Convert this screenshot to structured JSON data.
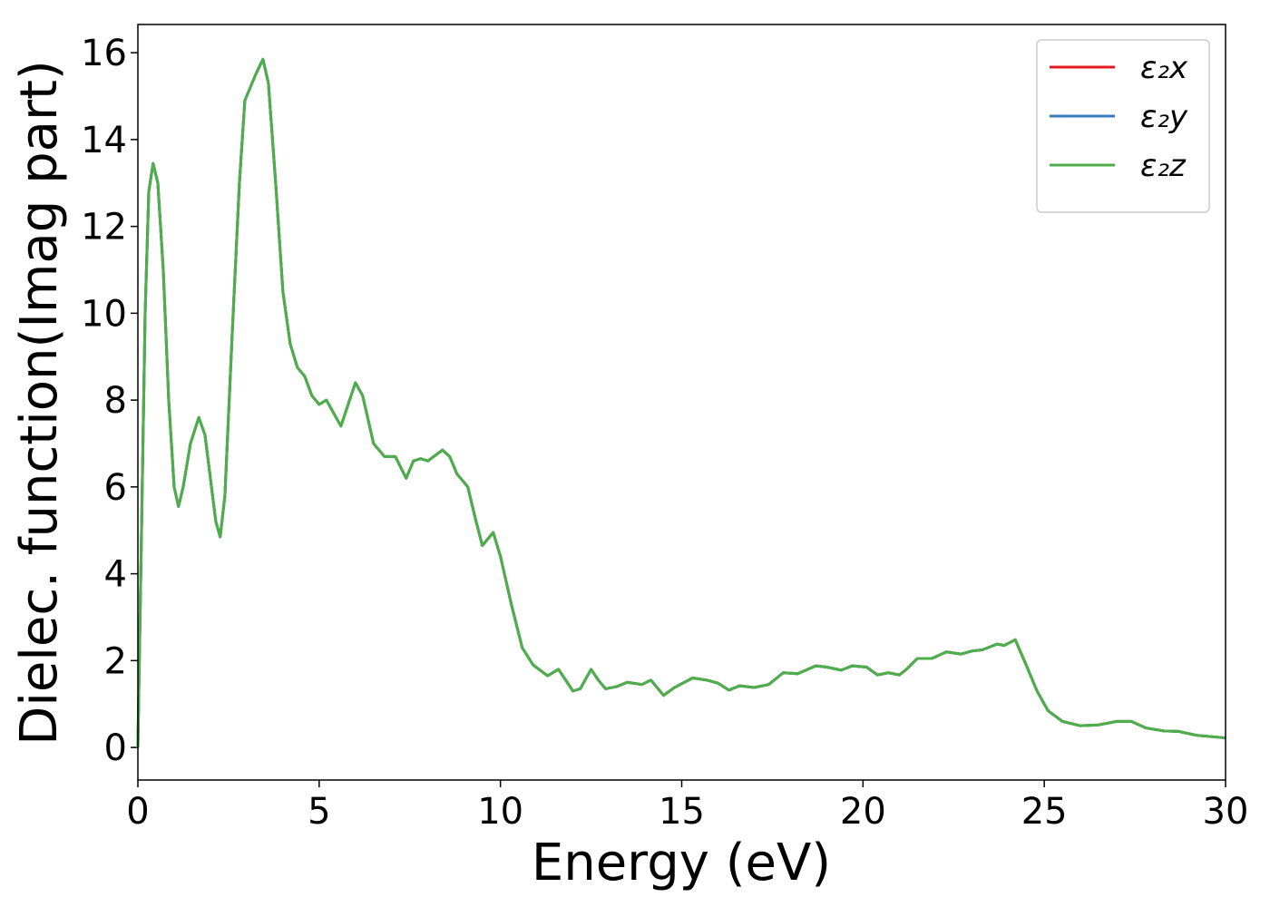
{
  "chart_data": {
    "type": "line",
    "xlabel": "Energy (eV)",
    "ylabel": "Dielec. function(Imag part)",
    "xlim": [
      0,
      30
    ],
    "ylim": [
      -0.75,
      16.65
    ],
    "xticks": [
      0,
      5,
      10,
      15,
      20,
      25,
      30
    ],
    "yticks": [
      0,
      2,
      4,
      6,
      8,
      10,
      12,
      14,
      16
    ],
    "legend": "upper right",
    "x": [
      0,
      0.1,
      0.2,
      0.3,
      0.42,
      0.55,
      0.7,
      0.85,
      1.0,
      1.12,
      1.25,
      1.45,
      1.68,
      1.85,
      2.0,
      2.15,
      2.27,
      2.4,
      2.6,
      2.8,
      2.95,
      3.1,
      3.25,
      3.45,
      3.6,
      3.8,
      4.0,
      4.2,
      4.4,
      4.6,
      4.8,
      5.0,
      5.2,
      5.4,
      5.6,
      5.8,
      6.0,
      6.2,
      6.5,
      6.8,
      7.1,
      7.4,
      7.6,
      7.8,
      8.0,
      8.4,
      8.6,
      8.8,
      9.1,
      9.3,
      9.5,
      9.8,
      10.0,
      10.3,
      10.6,
      10.9,
      11.3,
      11.6,
      11.8,
      12.0,
      12.2,
      12.5,
      12.7,
      12.9,
      13.2,
      13.5,
      13.9,
      14.15,
      14.5,
      14.8,
      15.3,
      15.7,
      16.0,
      16.3,
      16.6,
      17.0,
      17.4,
      17.8,
      18.2,
      18.7,
      19.0,
      19.4,
      19.7,
      20.1,
      20.4,
      20.7,
      21.0,
      21.2,
      21.5,
      21.9,
      22.3,
      22.7,
      23.0,
      23.3,
      23.7,
      23.9,
      24.2,
      24.5,
      24.8,
      25.1,
      25.5,
      26.0,
      26.5,
      27.0,
      27.4,
      27.8,
      28.3,
      28.7,
      29.2,
      30.0
    ],
    "series": [
      {
        "name": "ε₂x",
        "color": "#e41a1c",
        "values": [
          0,
          5,
          10,
          12.8,
          13.45,
          13.0,
          11,
          8,
          6,
          5.55,
          6.0,
          7.0,
          7.6,
          7.2,
          6.2,
          5.2,
          4.85,
          5.8,
          9.5,
          13,
          14.9,
          15.2,
          15.5,
          15.85,
          15.3,
          13,
          10.5,
          9.3,
          8.75,
          8.55,
          8.1,
          7.9,
          8.0,
          7.7,
          7.4,
          7.9,
          8.4,
          8.1,
          7.0,
          6.7,
          6.7,
          6.2,
          6.6,
          6.65,
          6.6,
          6.85,
          6.7,
          6.3,
          6.0,
          5.3,
          4.65,
          4.95,
          4.4,
          3.3,
          2.3,
          1.9,
          1.65,
          1.8,
          1.55,
          1.3,
          1.35,
          1.8,
          1.55,
          1.35,
          1.4,
          1.5,
          1.45,
          1.55,
          1.2,
          1.38,
          1.6,
          1.55,
          1.48,
          1.32,
          1.42,
          1.38,
          1.45,
          1.72,
          1.7,
          1.88,
          1.85,
          1.78,
          1.88,
          1.85,
          1.67,
          1.72,
          1.67,
          1.8,
          2.05,
          2.05,
          2.2,
          2.15,
          2.22,
          2.25,
          2.38,
          2.35,
          2.48,
          1.9,
          1.3,
          0.85,
          0.6,
          0.5,
          0.52,
          0.6,
          0.6,
          0.45,
          0.38,
          0.37,
          0.28,
          0.22
        ]
      },
      {
        "name": "ε₂y",
        "color": "#377eb8",
        "values": [
          0,
          5,
          10,
          12.8,
          13.45,
          13.0,
          11,
          8,
          6,
          5.55,
          6.0,
          7.0,
          7.6,
          7.2,
          6.2,
          5.2,
          4.85,
          5.8,
          9.5,
          13,
          14.9,
          15.2,
          15.5,
          15.85,
          15.3,
          13,
          10.5,
          9.3,
          8.75,
          8.55,
          8.1,
          7.9,
          8.0,
          7.7,
          7.4,
          7.9,
          8.4,
          8.1,
          7.0,
          6.7,
          6.7,
          6.2,
          6.6,
          6.65,
          6.6,
          6.85,
          6.7,
          6.3,
          6.0,
          5.3,
          4.65,
          4.95,
          4.4,
          3.3,
          2.3,
          1.9,
          1.65,
          1.8,
          1.55,
          1.3,
          1.35,
          1.8,
          1.55,
          1.35,
          1.4,
          1.5,
          1.45,
          1.55,
          1.2,
          1.38,
          1.6,
          1.55,
          1.48,
          1.32,
          1.42,
          1.38,
          1.45,
          1.72,
          1.7,
          1.88,
          1.85,
          1.78,
          1.88,
          1.85,
          1.67,
          1.72,
          1.67,
          1.8,
          2.05,
          2.05,
          2.2,
          2.15,
          2.22,
          2.25,
          2.38,
          2.35,
          2.48,
          1.9,
          1.3,
          0.85,
          0.6,
          0.5,
          0.52,
          0.6,
          0.6,
          0.45,
          0.38,
          0.37,
          0.28,
          0.22
        ]
      },
      {
        "name": "ε₂z",
        "color": "#4daf4a",
        "values": [
          0,
          5,
          10,
          12.8,
          13.45,
          13.0,
          11,
          8,
          6,
          5.55,
          6.0,
          7.0,
          7.6,
          7.2,
          6.2,
          5.2,
          4.85,
          5.8,
          9.5,
          13,
          14.9,
          15.2,
          15.5,
          15.85,
          15.3,
          13,
          10.5,
          9.3,
          8.75,
          8.55,
          8.1,
          7.9,
          8.0,
          7.7,
          7.4,
          7.9,
          8.4,
          8.1,
          7.0,
          6.7,
          6.7,
          6.2,
          6.6,
          6.65,
          6.6,
          6.85,
          6.7,
          6.3,
          6.0,
          5.3,
          4.65,
          4.95,
          4.4,
          3.3,
          2.3,
          1.9,
          1.65,
          1.8,
          1.55,
          1.3,
          1.35,
          1.8,
          1.55,
          1.35,
          1.4,
          1.5,
          1.45,
          1.55,
          1.2,
          1.38,
          1.6,
          1.55,
          1.48,
          1.32,
          1.42,
          1.38,
          1.45,
          1.72,
          1.7,
          1.88,
          1.85,
          1.78,
          1.88,
          1.85,
          1.67,
          1.72,
          1.67,
          1.8,
          2.05,
          2.05,
          2.2,
          2.15,
          2.22,
          2.25,
          2.38,
          2.35,
          2.48,
          1.9,
          1.3,
          0.85,
          0.6,
          0.5,
          0.52,
          0.6,
          0.6,
          0.45,
          0.38,
          0.37,
          0.28,
          0.22
        ]
      }
    ]
  }
}
